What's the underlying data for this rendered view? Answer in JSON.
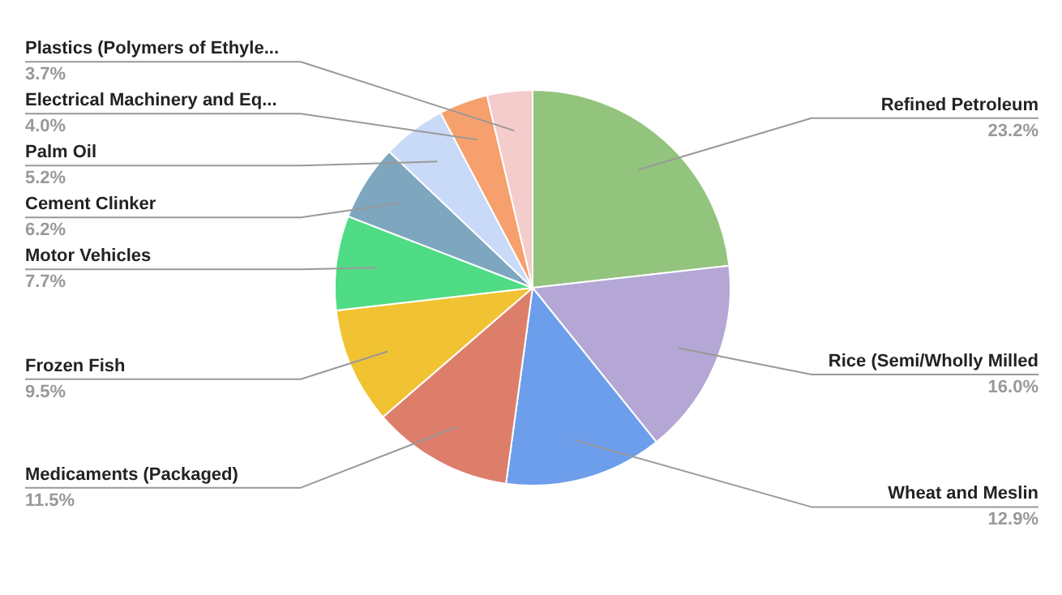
{
  "chart_data": {
    "type": "pie",
    "categories": [
      "Refined Petroleum",
      "Rice (Semi/Wholly Milled",
      "Wheat and Meslin",
      "Medicaments (Packaged)",
      "Frozen Fish",
      "Motor Vehicles",
      "Cement Clinker",
      "Palm Oil",
      "Electrical Machinery and Eq...",
      "Plastics (Polymers of Ethyle..."
    ],
    "values": [
      23.2,
      16.0,
      12.9,
      11.5,
      9.5,
      7.7,
      6.2,
      5.2,
      4.0,
      3.7
    ],
    "value_labels": [
      "23.2%",
      "16.0%",
      "12.9%",
      "11.5%",
      "9.5%",
      "7.7%",
      "6.2%",
      "5.2%",
      "4.0%",
      "3.7%"
    ],
    "colors": [
      "#93c47d",
      "#b4a7d6",
      "#6d9eeb",
      "#dd7e6b",
      "#f1c232",
      "#4fdc84",
      "#7ea6bf",
      "#c9daf8",
      "#f6a06e",
      "#f4cccc"
    ]
  }
}
